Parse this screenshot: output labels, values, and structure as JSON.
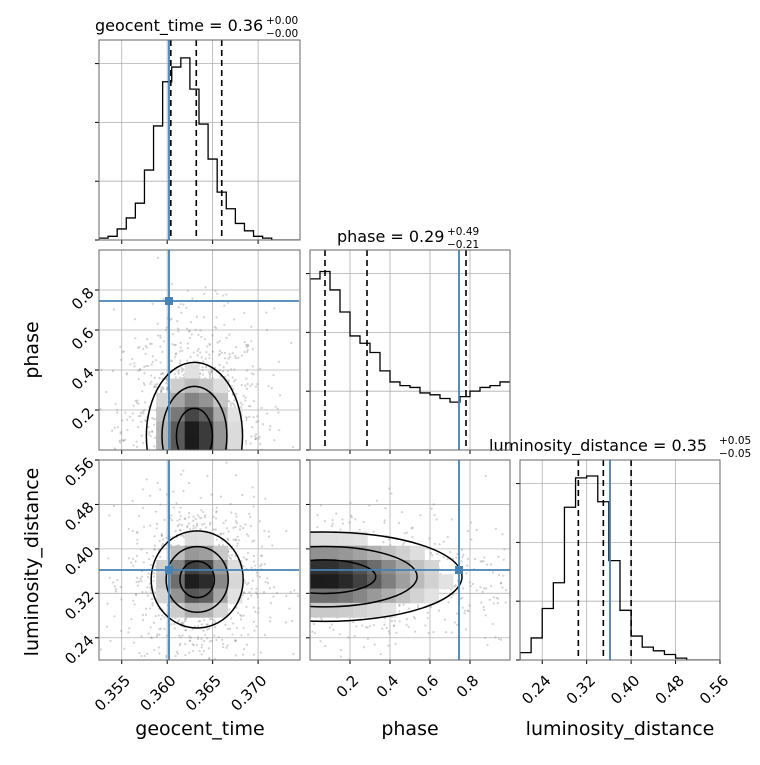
{
  "chart_data": {
    "type": "corner",
    "grid": true,
    "truth_color": "#4682b4",
    "parameters": [
      "geocent_time",
      "phase",
      "luminosity_distance"
    ],
    "truths": {
      "geocent_time": 0.3602,
      "phase": 0.745,
      "luminosity_distance": 0.362
    },
    "titles": {
      "geocent_time": {
        "name": "geocent_time",
        "median": "0.36",
        "plus": "+0.00",
        "minus": "−0.00"
      },
      "phase": {
        "name": "phase",
        "median": "0.29",
        "plus": "+0.49",
        "minus": "−0.21"
      },
      "luminosity_distance": {
        "name": "luminosity_distance",
        "median": "0.35",
        "plus": "+0.05",
        "minus": "−0.05"
      }
    },
    "axis_labels": {
      "geocent_time": "geocent_time",
      "phase": "phase",
      "luminosity_distance": "luminosity_distance"
    },
    "ranges": {
      "geocent_time": [
        0.3525,
        0.3745
      ],
      "phase": [
        0.0,
        1.0
      ],
      "luminosity_distance": [
        0.2,
        0.56
      ]
    },
    "ticks": {
      "geocent_time": [
        "0.355",
        "0.360",
        "0.365",
        "0.370"
      ],
      "phase": [
        "0.2",
        "0.4",
        "0.6",
        "0.8"
      ],
      "luminosity_distance": [
        "0.24",
        "0.32",
        "0.40",
        "0.48",
        "0.56"
      ]
    },
    "quantiles": {
      "geocent_time": [
        0.3604,
        0.3632,
        0.366
      ],
      "phase": [
        0.075,
        0.285,
        0.78
      ],
      "luminosity_distance": [
        0.305,
        0.35,
        0.4
      ]
    },
    "histograms": {
      "geocent_time": {
        "edges_start": 0.3525,
        "bin_width": 0.001,
        "counts": [
          0.01,
          0.02,
          0.06,
          0.12,
          0.2,
          0.38,
          0.62,
          0.86,
          0.94,
          0.99,
          0.82,
          0.63,
          0.44,
          0.26,
          0.17,
          0.09,
          0.05,
          0.02,
          0.01,
          0.0,
          0.0,
          0.0
        ]
      },
      "phase": {
        "edges_start": 0.0,
        "bin_width": 0.05,
        "counts": [
          0.93,
          0.97,
          0.87,
          0.75,
          0.62,
          0.58,
          0.53,
          0.43,
          0.37,
          0.35,
          0.34,
          0.31,
          0.3,
          0.28,
          0.26,
          0.29,
          0.32,
          0.34,
          0.35,
          0.37
        ]
      },
      "luminosity_distance": {
        "edges_start": 0.2,
        "bin_width": 0.02,
        "counts": [
          0.04,
          0.12,
          0.28,
          0.42,
          0.83,
          0.99,
          1.0,
          0.86,
          0.54,
          0.27,
          0.13,
          0.07,
          0.05,
          0.03,
          0.01,
          0.0,
          0.0,
          0.0
        ]
      }
    },
    "density_peaks": {
      "phase_vs_geocent_time": {
        "x": 0.363,
        "y": 0.07,
        "sx": 0.0023,
        "sy": 0.16
      },
      "luminosity_distance_vs_geocent_time": {
        "x": 0.3633,
        "y": 0.345,
        "sx": 0.0022,
        "sy": 0.038
      },
      "luminosity_distance_vs_phase": {
        "x": 0.07,
        "y": 0.35,
        "sx": 0.3,
        "sy": 0.035
      }
    }
  }
}
